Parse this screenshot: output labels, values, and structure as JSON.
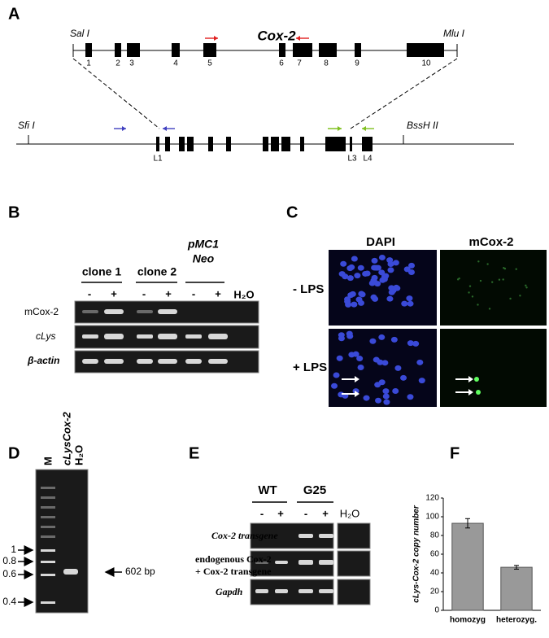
{
  "panels": {
    "A": {
      "letter": "A",
      "title": "Cox-2",
      "top_sites": [
        "Sal I",
        "Mlu I"
      ],
      "exons": [
        "1",
        "2",
        "3",
        "4",
        "5",
        "6",
        "7",
        "8",
        "9",
        "10"
      ],
      "bottom_sites": [
        "Sfi I",
        "BssH II"
      ],
      "loxp": [
        "L1",
        "L3",
        "L4"
      ]
    },
    "B": {
      "letter": "B",
      "groups": [
        "clone 1",
        "clone 2",
        "pMC1",
        "Neo"
      ],
      "lanes": [
        "-",
        "+",
        "-",
        "+",
        "-",
        "+",
        "H₂O"
      ],
      "rows": [
        "mCox-2",
        "cLys",
        "β-actin"
      ]
    },
    "C": {
      "letter": "C",
      "columns": [
        "DAPI",
        "mCox-2"
      ],
      "rows": [
        "- LPS",
        "+ LPS"
      ]
    },
    "D": {
      "letter": "D",
      "lanes": [
        "M",
        "cLysCox-2",
        "H₂O"
      ],
      "markers": [
        "1",
        "0.8",
        "0.6",
        "0.4"
      ],
      "band_label": "602 bp"
    },
    "E": {
      "letter": "E",
      "groups": [
        "WT",
        "G25"
      ],
      "lanes": [
        "-",
        "+",
        "-",
        "+",
        "H₂O"
      ],
      "rows": [
        "Cox-2 transgene",
        "endogenous Cox-2",
        "+ Cox-2 transgene",
        "Gapdh"
      ]
    },
    "F": {
      "letter": "F"
    }
  },
  "chart_data": {
    "type": "bar",
    "y_label": "cLys-Cox-2 copy number",
    "categories": [
      "homozyg",
      "heterozyg."
    ],
    "values": [
      93,
      46
    ],
    "errors": [
      5,
      2
    ],
    "color": "#999999",
    "ylim": [
      0,
      120
    ],
    "yticks": [
      0,
      20,
      40,
      60,
      80,
      100,
      120
    ],
    "grid": false
  }
}
